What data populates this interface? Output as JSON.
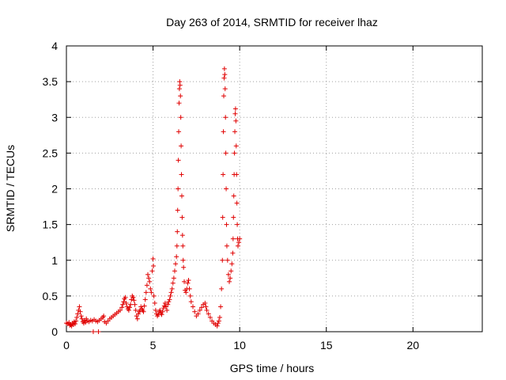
{
  "chart_data": {
    "type": "scatter",
    "title": "Day 263 of 2014, SRMTID for receiver lhaz",
    "xlabel": "GPS time / hours",
    "ylabel": "SRMTID / TECUs",
    "xlim": [
      0,
      24
    ],
    "ylim": [
      0,
      4
    ],
    "xticks": [
      0,
      5,
      10,
      15,
      20
    ],
    "yticks": [
      0,
      0.5,
      1,
      1.5,
      2,
      2.5,
      3,
      3.5,
      4
    ],
    "ytick_labels": [
      "0",
      "0.5",
      "1",
      "1.5",
      "2",
      "2.5",
      "3",
      "3.5",
      "4"
    ],
    "grid": true,
    "marker": "+",
    "color": "#e00000",
    "series": [
      {
        "points": [
          [
            0.0,
            0.12
          ],
          [
            0.08,
            0.11
          ],
          [
            0.15,
            0.13
          ],
          [
            0.2,
            0.09
          ],
          [
            0.25,
            0.1
          ],
          [
            0.3,
            0.08
          ],
          [
            0.35,
            0.12
          ],
          [
            0.4,
            0.1
          ],
          [
            0.45,
            0.14
          ],
          [
            0.5,
            0.11
          ],
          [
            0.55,
            0.15
          ],
          [
            0.6,
            0.2
          ],
          [
            0.65,
            0.25
          ],
          [
            0.7,
            0.3
          ],
          [
            0.75,
            0.35
          ],
          [
            0.8,
            0.28
          ],
          [
            0.85,
            0.22
          ],
          [
            0.9,
            0.18
          ],
          [
            0.95,
            0.14
          ],
          [
            1.0,
            0.12
          ],
          [
            1.05,
            0.16
          ],
          [
            1.1,
            0.13
          ],
          [
            1.15,
            0.18
          ],
          [
            1.2,
            0.15
          ],
          [
            1.3,
            0.14
          ],
          [
            1.4,
            0.16
          ],
          [
            1.5,
            0.15
          ],
          [
            1.55,
            0.0
          ],
          [
            1.6,
            0.17
          ],
          [
            1.7,
            0.15
          ],
          [
            1.8,
            0.14
          ],
          [
            1.85,
            0.0
          ],
          [
            1.9,
            0.16
          ],
          [
            2.0,
            0.18
          ],
          [
            2.1,
            0.2
          ],
          [
            2.15,
            0.22
          ],
          [
            2.2,
            0.14
          ],
          [
            2.3,
            0.12
          ],
          [
            2.4,
            0.15
          ],
          [
            2.5,
            0.18
          ],
          [
            2.6,
            0.2
          ],
          [
            2.7,
            0.22
          ],
          [
            2.8,
            0.24
          ],
          [
            2.9,
            0.26
          ],
          [
            3.0,
            0.28
          ],
          [
            3.1,
            0.3
          ],
          [
            3.2,
            0.34
          ],
          [
            3.25,
            0.38
          ],
          [
            3.3,
            0.42
          ],
          [
            3.35,
            0.46
          ],
          [
            3.4,
            0.48
          ],
          [
            3.45,
            0.4
          ],
          [
            3.5,
            0.35
          ],
          [
            3.55,
            0.32
          ],
          [
            3.6,
            0.3
          ],
          [
            3.65,
            0.34
          ],
          [
            3.7,
            0.38
          ],
          [
            3.75,
            0.45
          ],
          [
            3.8,
            0.5
          ],
          [
            3.85,
            0.48
          ],
          [
            3.9,
            0.44
          ],
          [
            3.95,
            0.38
          ],
          [
            4.0,
            0.3
          ],
          [
            4.05,
            0.22
          ],
          [
            4.1,
            0.18
          ],
          [
            4.15,
            0.25
          ],
          [
            4.2,
            0.28
          ],
          [
            4.25,
            0.3
          ],
          [
            4.3,
            0.35
          ],
          [
            4.35,
            0.32
          ],
          [
            4.4,
            0.3
          ],
          [
            4.45,
            0.28
          ],
          [
            4.5,
            0.36
          ],
          [
            4.55,
            0.45
          ],
          [
            4.6,
            0.55
          ],
          [
            4.65,
            0.65
          ],
          [
            4.7,
            0.8
          ],
          [
            4.75,
            0.75
          ],
          [
            4.8,
            0.7
          ],
          [
            4.85,
            0.6
          ],
          [
            4.9,
            0.55
          ],
          [
            4.95,
            0.85
          ],
          [
            5.0,
            1.02
          ],
          [
            5.02,
            0.92
          ],
          [
            5.05,
            0.5
          ],
          [
            5.1,
            0.4
          ],
          [
            5.15,
            0.3
          ],
          [
            5.2,
            0.25
          ],
          [
            5.25,
            0.22
          ],
          [
            5.3,
            0.24
          ],
          [
            5.35,
            0.28
          ],
          [
            5.4,
            0.3
          ],
          [
            5.45,
            0.26
          ],
          [
            5.5,
            0.24
          ],
          [
            5.55,
            0.28
          ],
          [
            5.6,
            0.33
          ],
          [
            5.65,
            0.36
          ],
          [
            5.7,
            0.4
          ],
          [
            5.75,
            0.35
          ],
          [
            5.8,
            0.3
          ],
          [
            5.85,
            0.38
          ],
          [
            5.9,
            0.42
          ],
          [
            5.95,
            0.45
          ],
          [
            6.0,
            0.5
          ],
          [
            6.05,
            0.55
          ],
          [
            6.1,
            0.6
          ],
          [
            6.15,
            0.68
          ],
          [
            6.2,
            0.75
          ],
          [
            6.25,
            0.85
          ],
          [
            6.3,
            0.95
          ],
          [
            6.35,
            1.05
          ],
          [
            6.38,
            1.2
          ],
          [
            6.4,
            1.4
          ],
          [
            6.42,
            1.7
          ],
          [
            6.44,
            2.0
          ],
          [
            6.46,
            2.4
          ],
          [
            6.48,
            2.8
          ],
          [
            6.5,
            3.2
          ],
          [
            6.52,
            3.4
          ],
          [
            6.54,
            3.5
          ],
          [
            6.56,
            3.45
          ],
          [
            6.58,
            3.3
          ],
          [
            6.6,
            3.0
          ],
          [
            6.62,
            2.6
          ],
          [
            6.64,
            2.2
          ],
          [
            6.66,
            1.9
          ],
          [
            6.68,
            1.6
          ],
          [
            6.7,
            1.35
          ],
          [
            6.72,
            1.2
          ],
          [
            6.74,
            1.0
          ],
          [
            6.76,
            0.9
          ],
          [
            6.8,
            0.7
          ],
          [
            6.85,
            0.58
          ],
          [
            6.9,
            0.55
          ],
          [
            6.95,
            0.6
          ],
          [
            7.0,
            0.68
          ],
          [
            7.05,
            0.72
          ],
          [
            7.1,
            0.6
          ],
          [
            7.15,
            0.5
          ],
          [
            7.2,
            0.42
          ],
          [
            7.3,
            0.35
          ],
          [
            7.4,
            0.28
          ],
          [
            7.5,
            0.22
          ],
          [
            7.6,
            0.25
          ],
          [
            7.7,
            0.3
          ],
          [
            7.8,
            0.34
          ],
          [
            7.9,
            0.38
          ],
          [
            8.0,
            0.4
          ],
          [
            8.05,
            0.35
          ],
          [
            8.1,
            0.3
          ],
          [
            8.2,
            0.25
          ],
          [
            8.3,
            0.2
          ],
          [
            8.4,
            0.15
          ],
          [
            8.5,
            0.12
          ],
          [
            8.6,
            0.1
          ],
          [
            8.7,
            0.08
          ],
          [
            8.75,
            0.12
          ],
          [
            8.8,
            0.15
          ],
          [
            8.85,
            0.2
          ],
          [
            8.9,
            0.35
          ],
          [
            8.95,
            0.6
          ],
          [
            9.0,
            1.0
          ],
          [
            9.02,
            1.6
          ],
          [
            9.04,
            2.2
          ],
          [
            9.06,
            2.8
          ],
          [
            9.08,
            3.3
          ],
          [
            9.1,
            3.55
          ],
          [
            9.12,
            3.68
          ],
          [
            9.14,
            3.6
          ],
          [
            9.16,
            3.4
          ],
          [
            9.18,
            3.0
          ],
          [
            9.2,
            2.5
          ],
          [
            9.22,
            2.0
          ],
          [
            9.24,
            1.5
          ],
          [
            9.26,
            1.2
          ],
          [
            9.3,
            1.0
          ],
          [
            9.35,
            0.8
          ],
          [
            9.4,
            0.7
          ],
          [
            9.45,
            0.75
          ],
          [
            9.5,
            0.85
          ],
          [
            9.55,
            0.95
          ],
          [
            9.6,
            1.1
          ],
          [
            9.62,
            1.3
          ],
          [
            9.64,
            1.6
          ],
          [
            9.66,
            1.9
          ],
          [
            9.68,
            2.2
          ],
          [
            9.7,
            2.5
          ],
          [
            9.72,
            2.8
          ],
          [
            9.74,
            3.05
          ],
          [
            9.76,
            3.12
          ],
          [
            9.78,
            2.95
          ],
          [
            9.8,
            2.6
          ],
          [
            9.82,
            2.2
          ],
          [
            9.84,
            1.8
          ],
          [
            9.86,
            1.5
          ],
          [
            9.88,
            1.3
          ],
          [
            9.9,
            1.2
          ],
          [
            9.95,
            1.25
          ],
          [
            10.0,
            1.3
          ]
        ]
      }
    ]
  }
}
